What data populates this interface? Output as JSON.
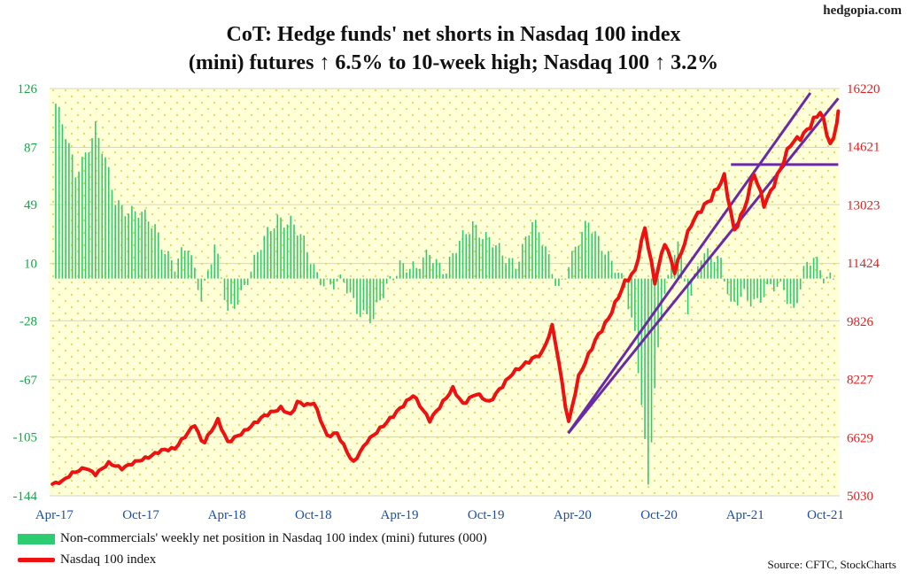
{
  "header": {
    "brand": "hedgopia.com",
    "title_line1": "CoT: Hedge funds' net shorts in Nasdaq 100 index",
    "title_line2": "(mini) futures ↑ 6.5% to 10-week high; Nasdaq 100 ↑ 3.2%"
  },
  "legend": {
    "bars_label": "Non-commercials' weekly net position in Nasdaq 100 index (mini) futures (000)",
    "line_label": "Nasdaq 100 index"
  },
  "source": "Source: CFTC, StockCharts",
  "colors": {
    "bars": "#2ecc71",
    "line": "#ee1111",
    "trendlines": "#6a2aa8",
    "plot_bg": "#ffffd8",
    "dots": "#e8e070",
    "left_axis": "#1aa34a",
    "right_axis": "#e02020",
    "x_axis": "#1a4fa0"
  },
  "chart_data": {
    "type": "bar+line",
    "x_ticks": [
      "Apr-17",
      "Oct-17",
      "Apr-18",
      "Oct-18",
      "Apr-19",
      "Oct-19",
      "Apr-20",
      "Oct-20",
      "Apr-21",
      "Oct-21"
    ],
    "left_axis": {
      "ticks": [
        "126",
        "87",
        "49",
        "10",
        "-28",
        "-67",
        "-105",
        "-144"
      ],
      "ylim": [
        -144,
        126
      ]
    },
    "right_axis": {
      "ticks": [
        "16220",
        "14621",
        "13023",
        "11424",
        "9826",
        "8227",
        "6629",
        "5030"
      ],
      "ylim": [
        5030,
        16220
      ]
    },
    "series": [
      {
        "name": "Non-commercials' weekly net position in Nasdaq 100 index (mini) futures (000)",
        "type": "bar",
        "axis": "left",
        "anchors": [
          [
            "2017-04-04",
            116
          ],
          [
            "2017-05-16",
            70
          ],
          [
            "2017-06-27",
            100
          ],
          [
            "2017-08-08",
            52
          ],
          [
            "2017-09-19",
            44
          ],
          [
            "2017-10-31",
            34
          ],
          [
            "2017-12-12",
            8
          ],
          [
            "2018-01-09",
            20
          ],
          [
            "2018-02-06",
            -10
          ],
          [
            "2018-03-06",
            22
          ],
          [
            "2018-04-03",
            -25
          ],
          [
            "2018-05-01",
            -8
          ],
          [
            "2018-06-12",
            20
          ],
          [
            "2018-07-17",
            42
          ],
          [
            "2018-08-14",
            38
          ],
          [
            "2018-09-11",
            22
          ],
          [
            "2018-10-09",
            4
          ],
          [
            "2018-11-06",
            -5
          ],
          [
            "2018-12-04",
            -4
          ],
          [
            "2019-01-01",
            -18
          ],
          [
            "2019-02-05",
            -28
          ],
          [
            "2019-03-05",
            -6
          ],
          [
            "2019-04-02",
            12
          ],
          [
            "2019-05-07",
            4
          ],
          [
            "2019-06-04",
            18
          ],
          [
            "2019-07-09",
            6
          ],
          [
            "2019-08-06",
            22
          ],
          [
            "2019-09-03",
            38
          ],
          [
            "2019-10-01",
            28
          ],
          [
            "2019-11-05",
            14
          ],
          [
            "2019-12-03",
            12
          ],
          [
            "2020-01-07",
            36
          ],
          [
            "2020-02-04",
            20
          ],
          [
            "2020-03-03",
            -5
          ],
          [
            "2020-03-31",
            12
          ],
          [
            "2020-05-05",
            40
          ],
          [
            "2020-05-26",
            28
          ],
          [
            "2020-06-23",
            8
          ],
          [
            "2020-07-21",
            -5
          ],
          [
            "2020-08-11",
            -35
          ],
          [
            "2020-08-25",
            -80
          ],
          [
            "2020-09-08",
            -140
          ],
          [
            "2020-09-22",
            -75
          ],
          [
            "2020-10-13",
            -6
          ],
          [
            "2020-11-10",
            30
          ],
          [
            "2020-12-01",
            -22
          ],
          [
            "2020-12-29",
            15
          ],
          [
            "2021-01-19",
            20
          ],
          [
            "2021-02-09",
            12
          ],
          [
            "2021-03-02",
            -22
          ],
          [
            "2021-03-30",
            -10
          ],
          [
            "2021-04-27",
            -14
          ],
          [
            "2021-05-25",
            -8
          ],
          [
            "2021-06-22",
            -6
          ],
          [
            "2021-07-13",
            -20
          ],
          [
            "2021-08-03",
            4
          ],
          [
            "2021-08-24",
            12
          ],
          [
            "2021-09-14",
            2
          ],
          [
            "2021-10-05",
            4
          ]
        ]
      },
      {
        "name": "Nasdaq 100 index",
        "type": "line",
        "axis": "right",
        "anchors": [
          [
            "2017-03-28",
            5350
          ],
          [
            "2017-04-18",
            5430
          ],
          [
            "2017-05-09",
            5650
          ],
          [
            "2017-06-06",
            5800
          ],
          [
            "2017-06-27",
            5620
          ],
          [
            "2017-07-25",
            5930
          ],
          [
            "2017-08-22",
            5780
          ],
          [
            "2017-09-19",
            5960
          ],
          [
            "2017-10-17",
            6090
          ],
          [
            "2017-11-14",
            6280
          ],
          [
            "2017-12-12",
            6330
          ],
          [
            "2018-01-23",
            6990
          ],
          [
            "2018-02-09",
            6440
          ],
          [
            "2018-03-13",
            7110
          ],
          [
            "2018-04-03",
            6500
          ],
          [
            "2018-05-08",
            6800
          ],
          [
            "2018-06-19",
            7230
          ],
          [
            "2018-07-24",
            7440
          ],
          [
            "2018-08-14",
            7250
          ],
          [
            "2018-08-28",
            7600
          ],
          [
            "2018-09-18",
            7520
          ],
          [
            "2018-10-02",
            7590
          ],
          [
            "2018-10-30",
            6670
          ],
          [
            "2018-11-20",
            6750
          ],
          [
            "2018-12-24",
            5930
          ],
          [
            "2019-01-22",
            6520
          ],
          [
            "2019-03-05",
            7050
          ],
          [
            "2019-04-30",
            7800
          ],
          [
            "2019-06-04",
            7100
          ],
          [
            "2019-07-23",
            7980
          ],
          [
            "2019-08-13",
            7550
          ],
          [
            "2019-09-10",
            7840
          ],
          [
            "2019-10-08",
            7600
          ],
          [
            "2019-11-26",
            8400
          ],
          [
            "2019-12-31",
            8730
          ],
          [
            "2020-01-28",
            8960
          ],
          [
            "2020-02-19",
            9710
          ],
          [
            "2020-03-03",
            8700
          ],
          [
            "2020-03-23",
            6990
          ],
          [
            "2020-04-14",
            8300
          ],
          [
            "2020-05-19",
            9300
          ],
          [
            "2020-06-16",
            9900
          ],
          [
            "2020-07-21",
            10900
          ],
          [
            "2020-08-11",
            11200
          ],
          [
            "2020-09-01",
            12400
          ],
          [
            "2020-09-22",
            10900
          ],
          [
            "2020-10-13",
            12000
          ],
          [
            "2020-11-03",
            11200
          ],
          [
            "2020-12-08",
            12500
          ],
          [
            "2020-12-29",
            12900
          ],
          [
            "2021-01-19",
            13200
          ],
          [
            "2021-02-16",
            13800
          ],
          [
            "2021-03-09",
            12300
          ],
          [
            "2021-03-30",
            12900
          ],
          [
            "2021-04-20",
            13900
          ],
          [
            "2021-05-12",
            13000
          ],
          [
            "2021-06-08",
            13800
          ],
          [
            "2021-07-06",
            14700
          ],
          [
            "2021-08-03",
            14950
          ],
          [
            "2021-09-07",
            15600
          ],
          [
            "2021-09-28",
            14700
          ],
          [
            "2021-10-05",
            14800
          ],
          [
            "2021-10-15",
            15600
          ]
        ]
      }
    ],
    "trend_lines": [
      {
        "axis": "right",
        "from": [
          "2020-03-23",
          6750
        ],
        "to": [
          "2021-10-15",
          15950
        ]
      },
      {
        "axis": "right",
        "from": [
          "2020-03-23",
          6750
        ],
        "to": [
          "2021-08-17",
          16100
        ]
      },
      {
        "axis": "right",
        "from": [
          "2021-03-02",
          14130
        ],
        "to": [
          "2021-10-15",
          14130
        ]
      }
    ],
    "xlim": [
      "2017-03-22",
      "2021-10-18"
    ]
  }
}
